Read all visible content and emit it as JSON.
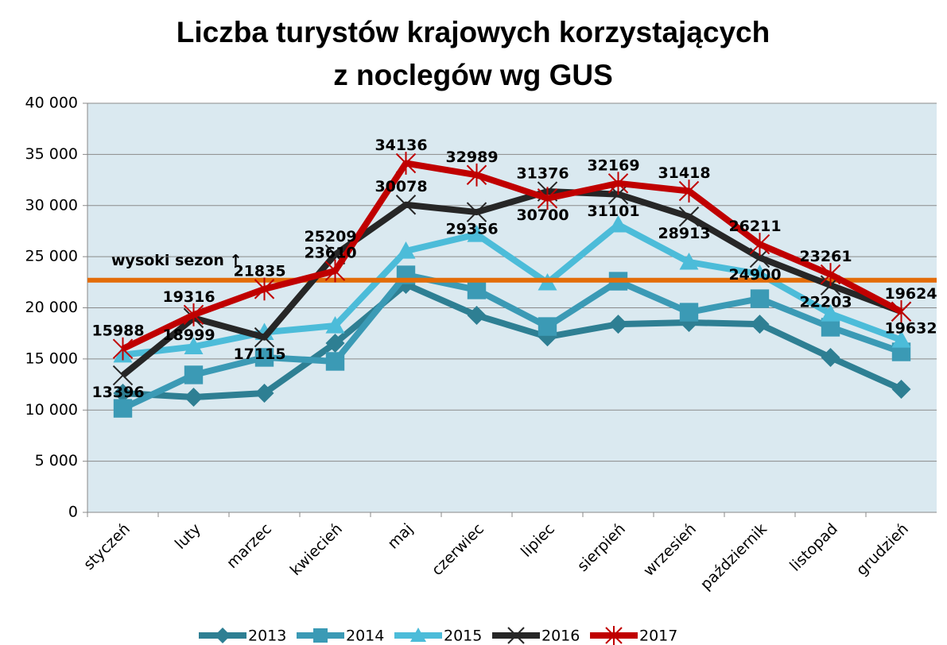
{
  "chart_data": {
    "type": "line",
    "title": [
      "Liczba turystów krajowych korzystających",
      "z noclegów wg GUS"
    ],
    "categories": [
      "styczeń",
      "luty",
      "marzec",
      "kwiecień",
      "maj",
      "czerwiec",
      "lipiec",
      "sierpień",
      "wrzesień",
      "październik",
      "listopad",
      "grudzień"
    ],
    "series": [
      {
        "name": "2013",
        "color": "#2e7f93",
        "marker": "diamond",
        "values": [
          11650,
          11260,
          11650,
          16540,
          22290,
          19260,
          17160,
          18400,
          18560,
          18400,
          15150,
          12040
        ]
      },
      {
        "name": "2014",
        "color": "#3b9ab5",
        "marker": "square",
        "values": [
          10170,
          13440,
          15150,
          14760,
          23220,
          21750,
          18170,
          22600,
          19570,
          20890,
          18100,
          15690
        ]
      },
      {
        "name": "2015",
        "color": "#4cbcd9",
        "marker": "triangle",
        "values": [
          15400,
          16200,
          17600,
          18250,
          25550,
          27180,
          22450,
          28120,
          24470,
          23300,
          19420,
          16850
        ]
      },
      {
        "name": "2016",
        "color": "#262626",
        "marker": "x",
        "labels": true,
        "values": [
          13396,
          18999,
          17115,
          25209,
          30078,
          29356,
          31376,
          31101,
          28913,
          24900,
          22203,
          19632
        ]
      },
      {
        "name": "2017",
        "color": "#c00000",
        "marker": "star",
        "labels": true,
        "values": [
          15988,
          19316,
          21835,
          23610,
          34136,
          32989,
          30700,
          32169,
          31418,
          26211,
          23261,
          19624
        ]
      }
    ],
    "ylim": [
      0,
      40000
    ],
    "yticks": [
      0,
      {
        "value": 5000,
        "label": "5 000"
      },
      {
        "value": 10000,
        "label": "10 000"
      },
      {
        "value": 15000,
        "label": "15 000"
      },
      {
        "value": 20000,
        "label": "20 000"
      },
      {
        "value": 25000,
        "label": "25 000"
      },
      {
        "value": 30000,
        "label": "30 000"
      },
      {
        "value": 35000,
        "label": "35 000"
      },
      {
        "value": 40000,
        "label": "40 000"
      }
    ],
    "reference_line": {
      "value": 22700,
      "label": "wysoki sezon ↑",
      "color": "#e36c09"
    },
    "plot_background": "#dae9f0",
    "legend": "bottom"
  }
}
